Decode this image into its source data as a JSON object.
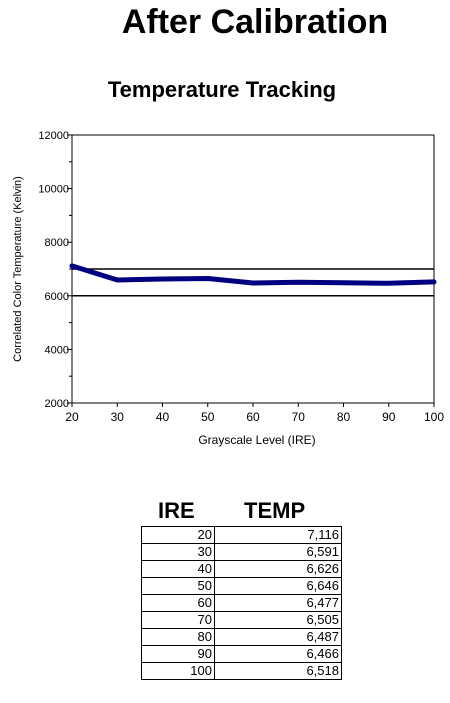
{
  "page": {
    "title": "After Calibration"
  },
  "chart_data": {
    "type": "line",
    "title": "Temperature Tracking",
    "xlabel": "Grayscale Level (IRE)",
    "ylabel": "Correlated Color Temperature (Kelvin)",
    "xlim": [
      20,
      100
    ],
    "ylim": [
      2000,
      12000
    ],
    "x_ticks": [
      20,
      30,
      40,
      50,
      60,
      70,
      80,
      90,
      100
    ],
    "y_ticks": [
      2000,
      4000,
      6000,
      8000,
      10000,
      12000
    ],
    "reference_lines": [
      6000,
      7000
    ],
    "grid": false,
    "series": [
      {
        "x": [
          20,
          30,
          40,
          50,
          60,
          70,
          80,
          90,
          100
        ],
        "values": [
          7116,
          6591,
          6626,
          6646,
          6477,
          6505,
          6487,
          6466,
          6518
        ],
        "color": "#000080"
      }
    ]
  },
  "table": {
    "headers": [
      "IRE",
      "TEMP"
    ],
    "rows": [
      [
        "20",
        "7,116"
      ],
      [
        "30",
        "6,591"
      ],
      [
        "40",
        "6,626"
      ],
      [
        "50",
        "6,646"
      ],
      [
        "60",
        "6,477"
      ],
      [
        "70",
        "6,505"
      ],
      [
        "80",
        "6,487"
      ],
      [
        "90",
        "6,466"
      ],
      [
        "100",
        "6,518"
      ]
    ]
  }
}
